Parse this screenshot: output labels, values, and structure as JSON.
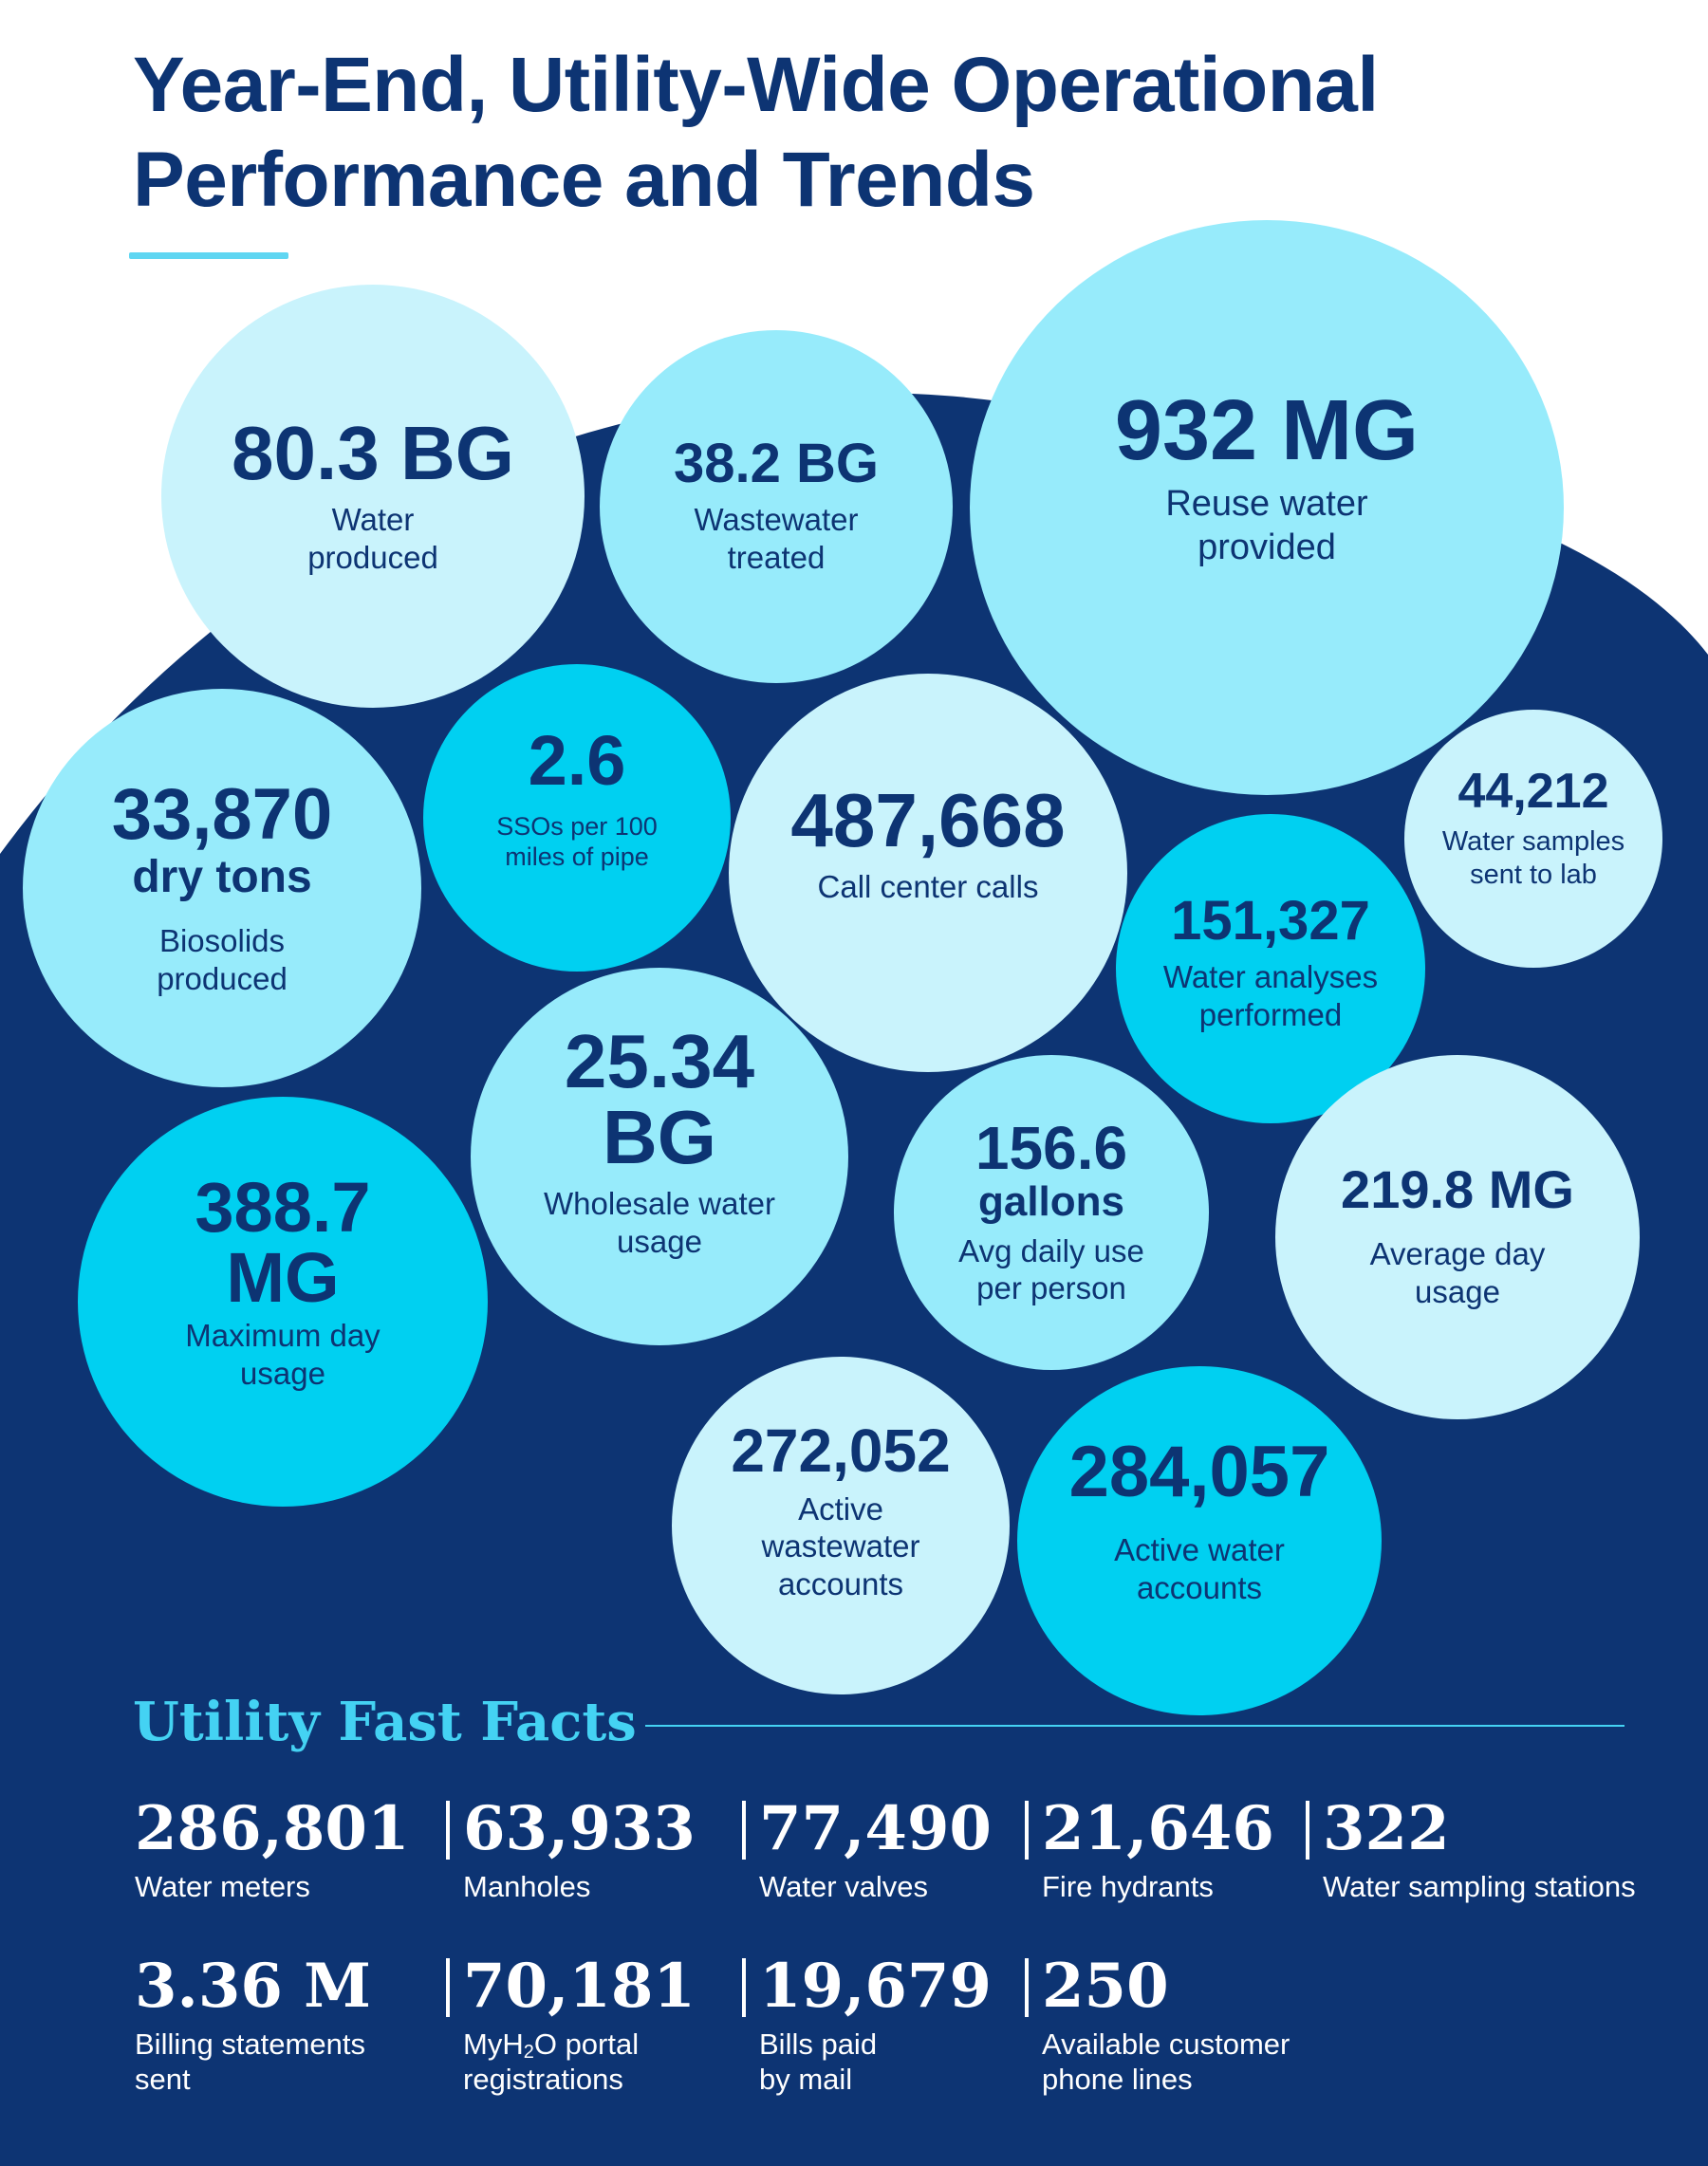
{
  "header": {
    "title_line1": "Year-End, Utility-Wide Operational",
    "title_line2": "Performance and Trends"
  },
  "colors": {
    "navy": "#0d3473",
    "pale_cyan": "#c9f3fc",
    "light_cyan": "#97ebfb",
    "bright_cyan": "#00d0f1",
    "accent": "#44d2f3"
  },
  "stats": [
    {
      "value": "80.3 BG",
      "label": "Water produced"
    },
    {
      "value": "38.2 BG",
      "label": "Wastewater treated"
    },
    {
      "value": "932 MG",
      "label": "Reuse water provided"
    },
    {
      "value": "33,870",
      "unit": "dry tons",
      "label": "Biosolids produced"
    },
    {
      "value": "2.6",
      "label": "SSOs per 100 miles of pipe"
    },
    {
      "value": "487,668",
      "label": "Call center calls"
    },
    {
      "value": "44,212",
      "label": "Water samples sent to lab"
    },
    {
      "value": "151,327",
      "label": "Water analyses performed"
    },
    {
      "value": "25.34 BG",
      "label": "Wholesale water usage"
    },
    {
      "value": "388.7 MG",
      "label": "Maximum day usage"
    },
    {
      "value": "156.6",
      "unit": "gallons",
      "label": "Avg daily use per person"
    },
    {
      "value": "219.8 MG",
      "label": "Average day usage"
    },
    {
      "value": "272,052",
      "label": "Active wastewater accounts"
    },
    {
      "value": "284,057",
      "label": "Active water accounts"
    }
  ],
  "fast_facts": {
    "title": "Utility Fast Facts",
    "items": [
      {
        "value": "286,801",
        "label": "Water meters"
      },
      {
        "value": "63,933",
        "label": "Manholes"
      },
      {
        "value": "77,490",
        "label": "Water valves"
      },
      {
        "value": "21,646",
        "label": "Fire hydrants"
      },
      {
        "value": "322",
        "label": "Water sampling stations"
      },
      {
        "value": "3.36 M",
        "label": "Billing statements sent"
      },
      {
        "value": "70,181",
        "label_prefix": "MyH",
        "label_sub": "2",
        "label_suffix": "O portal registrations"
      },
      {
        "value": "19,679",
        "label": "Bills paid by mail"
      },
      {
        "value": "250",
        "label": "Available customer phone lines"
      }
    ]
  }
}
